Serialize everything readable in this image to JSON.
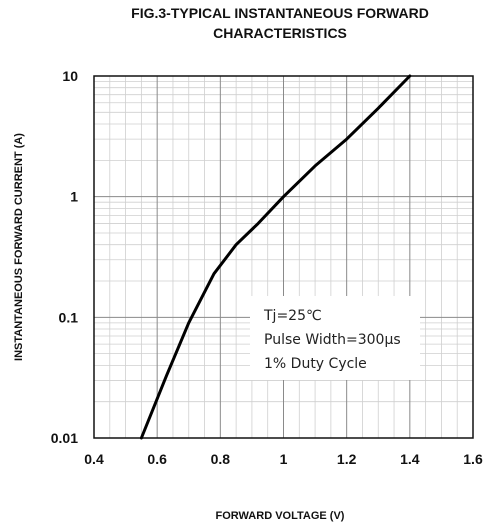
{
  "chart_data": {
    "type": "line",
    "title_lines": [
      "FIG.3-TYPICAL INSTANTANEOUS FORWARD",
      "CHARACTERISTICS"
    ],
    "xlabel": "FORWARD VOLTAGE (V)",
    "ylabel": "INSTANTANEOUS FORWARD CURRENT (A)",
    "xlim": [
      0.4,
      1.6
    ],
    "ylim": [
      0.01,
      10
    ],
    "yscale": "log",
    "grid": true,
    "x_ticks": [
      0.4,
      0.6,
      0.8,
      1.0,
      1.2,
      1.4,
      1.6
    ],
    "x_tick_labels": [
      "0.4",
      "0.6",
      "0.8",
      "1",
      "1.2",
      "1.4",
      "1.6"
    ],
    "y_ticks": [
      0.01,
      0.1,
      1,
      10
    ],
    "y_tick_labels": [
      "0.01",
      "0.1",
      "1",
      "10"
    ],
    "series": [
      {
        "x": [
          0.55,
          0.63,
          0.7,
          0.78,
          0.85,
          0.92,
          1.0,
          1.1,
          1.2,
          1.3,
          1.4
        ],
        "y": [
          0.01,
          0.033,
          0.09,
          0.23,
          0.4,
          0.6,
          1.0,
          1.8,
          3.0,
          5.4,
          10.0
        ]
      }
    ],
    "annotation": [
      "Tj=25℃",
      "Pulse Width=300μs",
      "1% Duty Cycle"
    ]
  }
}
